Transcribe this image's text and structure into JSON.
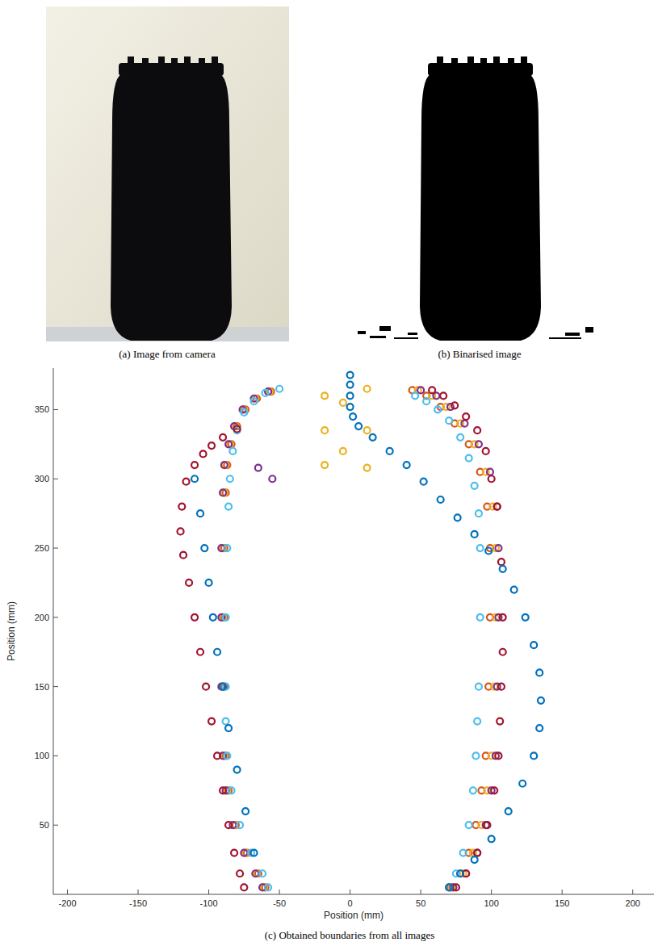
{
  "panels": {
    "a": {
      "caption": "(a) Image from camera"
    },
    "b": {
      "caption": "(b) Binarised image"
    }
  },
  "chart_data": {
    "type": "scatter",
    "caption": "(c) Obtained boundaries from all images",
    "x_label": "Position (mm)",
    "y_label": "Position (mm)",
    "xlim": [
      -210,
      215
    ],
    "ylim": [
      0,
      380
    ],
    "xticks": [
      -200,
      -150,
      -100,
      -50,
      0,
      50,
      100,
      150,
      200
    ],
    "yticks": [
      50,
      100,
      150,
      200,
      250,
      300,
      350
    ],
    "grid": false,
    "series": [
      {
        "color": "#d95319",
        "marker": "circle",
        "x": [
          -60,
          -65,
          -73,
          -81,
          -86,
          -88,
          -89,
          -89,
          -89,
          -88,
          -87,
          -84,
          -80,
          -74,
          -66,
          -56,
          71,
          78,
          84,
          89,
          93,
          96,
          98,
          99,
          99,
          97,
          92,
          84,
          74,
          64,
          54,
          44
        ],
        "y": [
          5,
          15,
          30,
          50,
          75,
          100,
          150,
          200,
          250,
          290,
          310,
          325,
          338,
          350,
          358,
          363,
          5,
          15,
          30,
          50,
          75,
          100,
          150,
          200,
          250,
          280,
          305,
          325,
          340,
          352,
          360,
          364
        ]
      },
      {
        "color": "#edb120",
        "marker": "circle",
        "x": [
          -61,
          -66,
          -74,
          -82,
          -87,
          -89,
          -90,
          -90,
          -90,
          -89,
          -88,
          -85,
          -81,
          -75,
          -67,
          -57,
          72,
          80,
          87,
          93,
          97,
          100,
          102,
          103,
          103,
          101,
          96,
          88,
          78,
          68,
          58,
          48,
          -18,
          -18,
          -18,
          -5,
          -5,
          12,
          12,
          12
        ],
        "y": [
          5,
          15,
          30,
          50,
          75,
          100,
          150,
          200,
          250,
          290,
          310,
          325,
          338,
          350,
          358,
          363,
          5,
          15,
          30,
          50,
          75,
          100,
          150,
          200,
          250,
          280,
          305,
          325,
          340,
          352,
          360,
          364,
          310,
          335,
          360,
          320,
          355,
          308,
          335,
          365
        ]
      },
      {
        "color": "#7e2f8e",
        "marker": "circle",
        "x": [
          -62,
          -67,
          -75,
          -83,
          -88,
          -90,
          -91,
          -91,
          -91,
          -90,
          -89,
          -86,
          -82,
          -76,
          -68,
          -58,
          -55,
          -65,
          73,
          82,
          90,
          96,
          100,
          103,
          104,
          105,
          105,
          104,
          99,
          91,
          81,
          71,
          61,
          50
        ],
        "y": [
          5,
          15,
          30,
          50,
          75,
          100,
          150,
          200,
          250,
          290,
          310,
          325,
          338,
          350,
          358,
          363,
          300,
          308,
          5,
          15,
          30,
          50,
          75,
          100,
          150,
          200,
          250,
          280,
          305,
          325,
          340,
          352,
          360,
          364
        ]
      },
      {
        "color": "#4dbeee",
        "marker": "circle",
        "x": [
          -58,
          -62,
          -70,
          -78,
          -84,
          -87,
          -88,
          -88,
          -88,
          -87,
          -86,
          -85,
          -83,
          -80,
          -75,
          -68,
          -60,
          -50,
          70,
          75,
          80,
          84,
          87,
          89,
          90,
          91,
          92,
          92,
          91,
          88,
          84,
          78,
          70,
          62,
          54,
          46
        ],
        "y": [
          5,
          15,
          30,
          50,
          75,
          100,
          125,
          150,
          200,
          250,
          280,
          300,
          320,
          335,
          348,
          356,
          362,
          365,
          5,
          15,
          30,
          50,
          75,
          100,
          125,
          150,
          200,
          250,
          275,
          295,
          315,
          330,
          342,
          350,
          356,
          360
        ]
      },
      {
        "color": "#a2142f",
        "marker": "circle",
        "x": [
          -75,
          -78,
          -82,
          -86,
          -90,
          -94,
          -98,
          -102,
          -106,
          -110,
          -114,
          -118,
          -120,
          -119,
          -116,
          -110,
          -104,
          -98,
          -90,
          -80,
          75,
          82,
          90,
          97,
          102,
          105,
          106,
          107,
          108,
          108,
          107,
          104,
          100,
          96,
          90,
          82,
          74,
          66,
          58
        ],
        "y": [
          5,
          15,
          30,
          50,
          75,
          100,
          125,
          150,
          175,
          200,
          225,
          245,
          262,
          280,
          298,
          310,
          318,
          324,
          330,
          336,
          5,
          15,
          30,
          50,
          75,
          100,
          125,
          150,
          175,
          200,
          240,
          280,
          300,
          320,
          335,
          345,
          353,
          360,
          364
        ]
      },
      {
        "color": "#0072bd",
        "marker": "circle",
        "x": [
          -110,
          -106,
          -103,
          -100,
          -97,
          -94,
          -90,
          -86,
          -80,
          -74,
          -68,
          70,
          78,
          88,
          100,
          112,
          122,
          130,
          134,
          135,
          134,
          130,
          124,
          116,
          108,
          98,
          88,
          76,
          64,
          52,
          40,
          28,
          16,
          6,
          2,
          0,
          0,
          0,
          0
        ],
        "y": [
          300,
          275,
          250,
          225,
          200,
          175,
          150,
          120,
          90,
          60,
          30,
          5,
          15,
          25,
          40,
          60,
          80,
          100,
          120,
          140,
          160,
          180,
          200,
          220,
          235,
          248,
          260,
          272,
          285,
          298,
          310,
          320,
          330,
          338,
          345,
          352,
          360,
          368,
          375
        ]
      }
    ]
  }
}
